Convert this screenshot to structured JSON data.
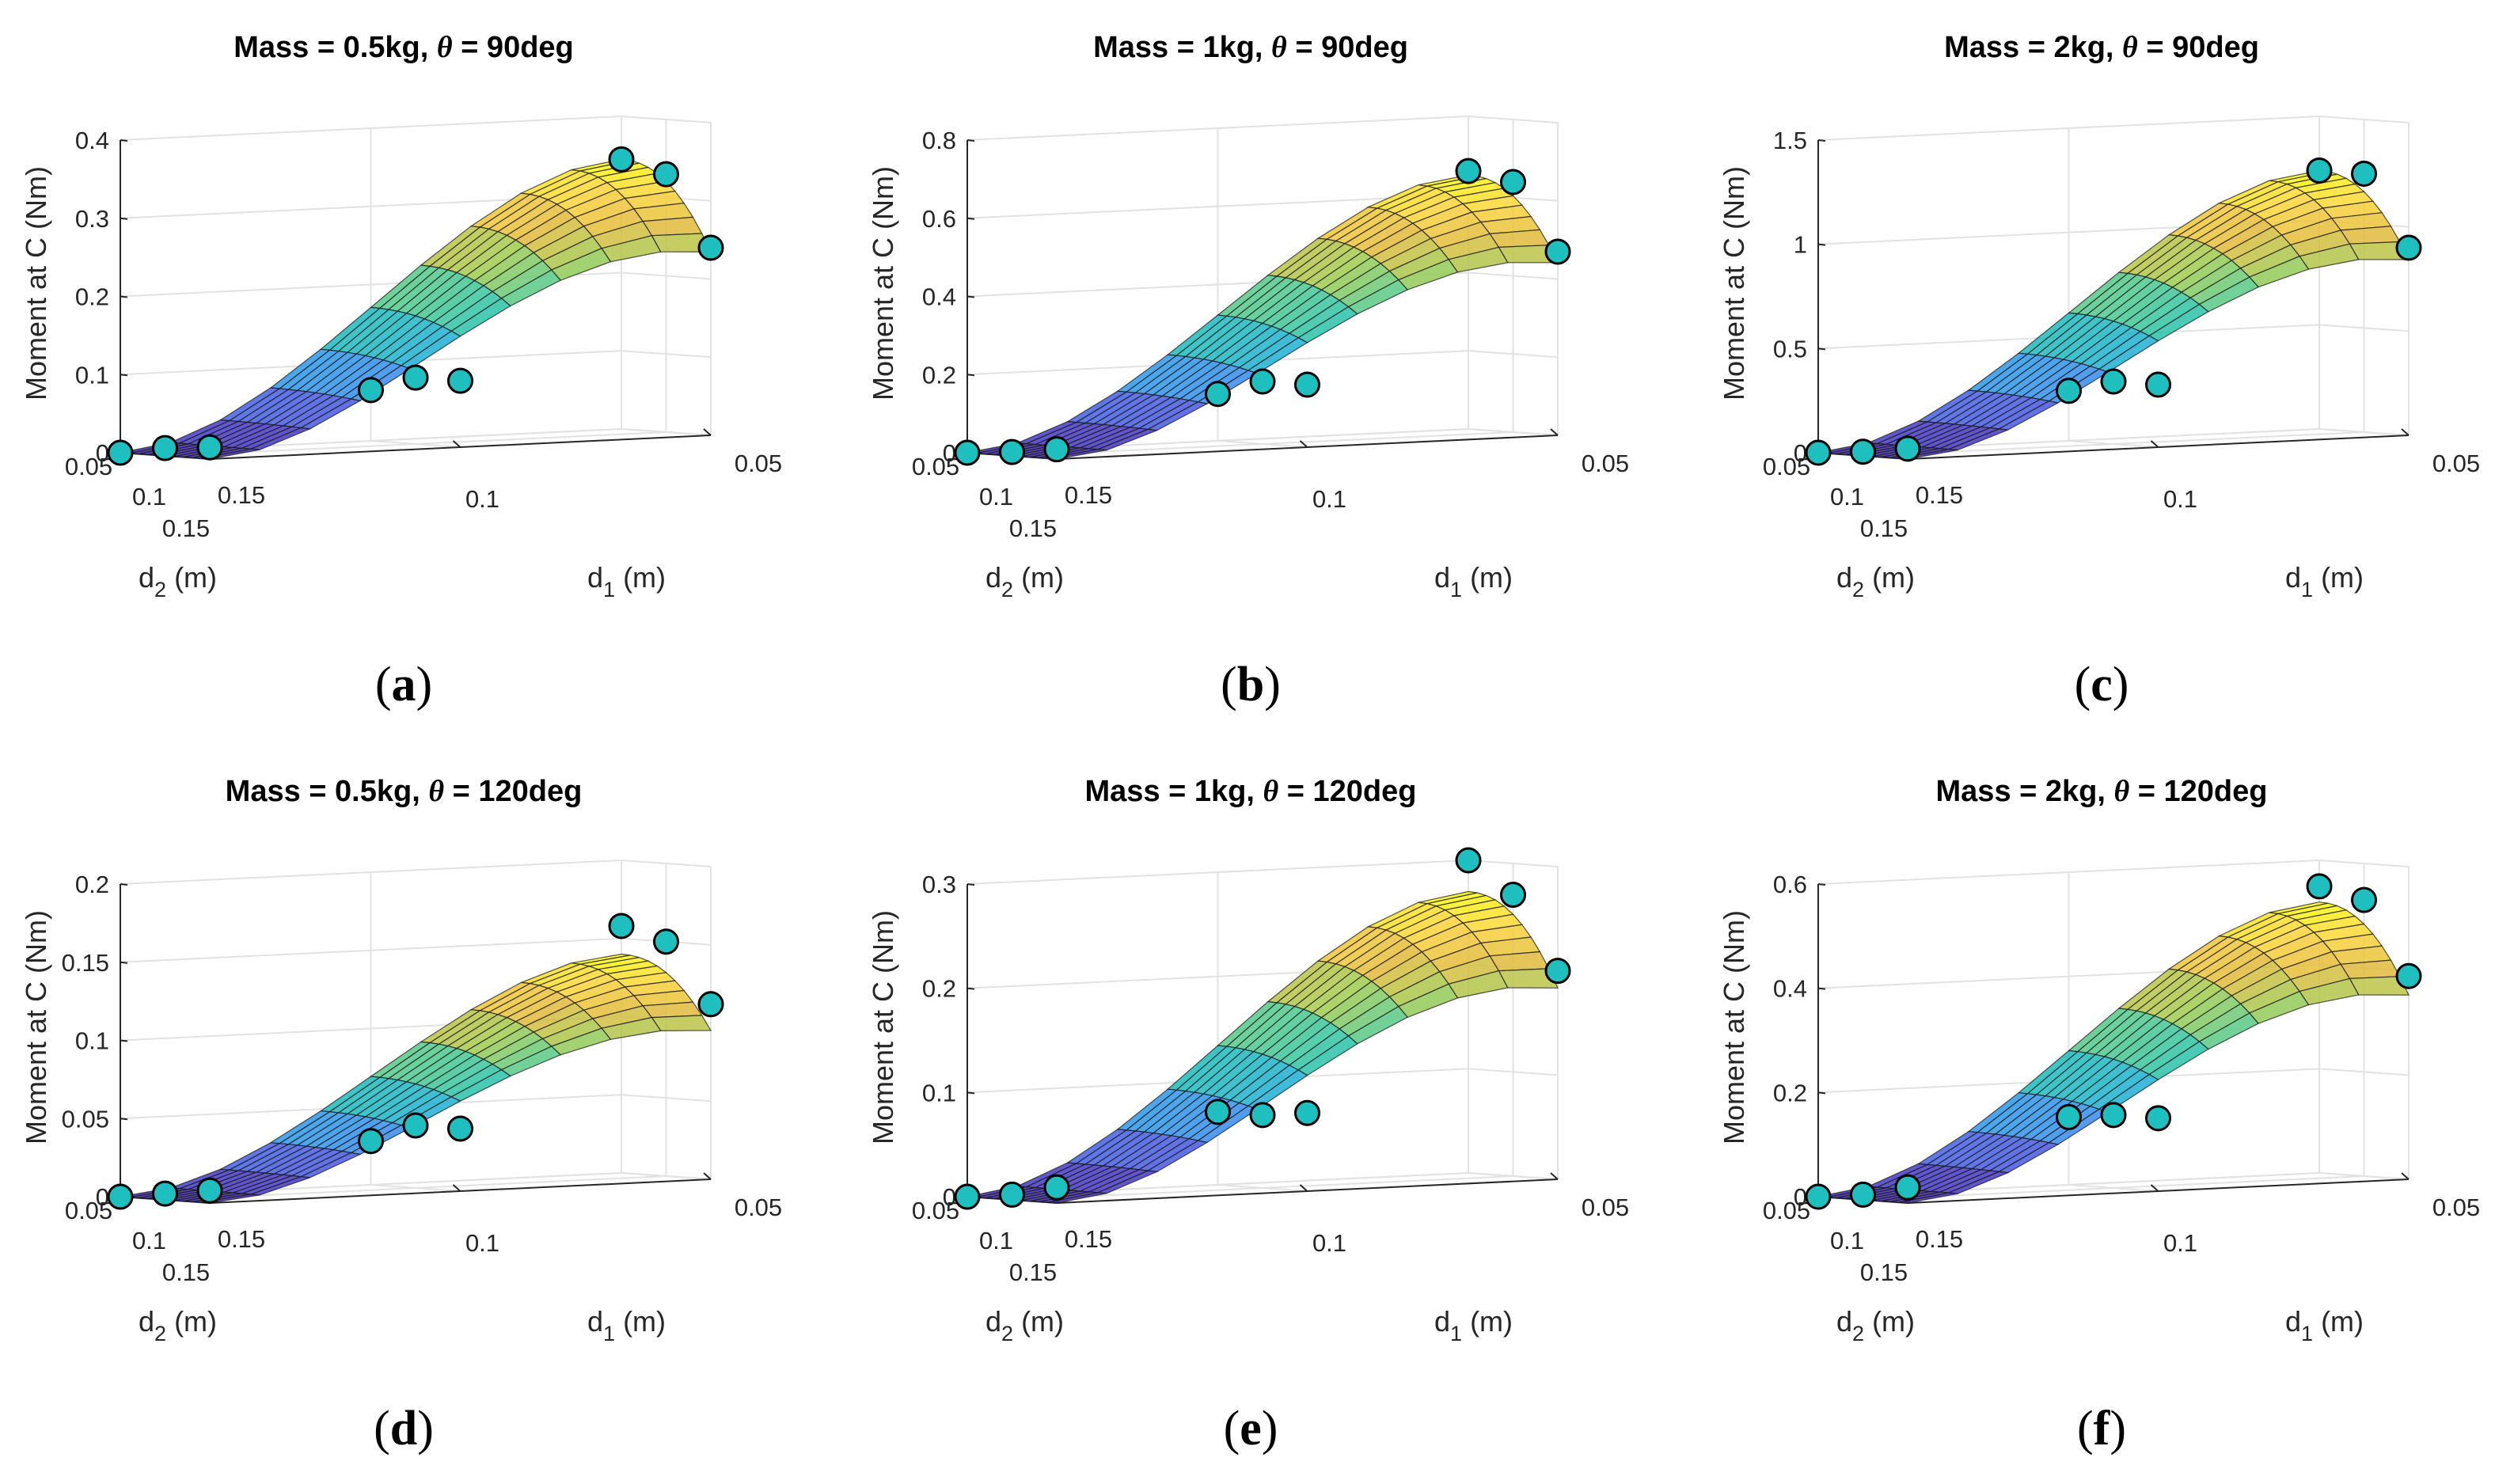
{
  "chart_data": [
    {
      "type": "surface",
      "panel": "(a)",
      "panel_letter": "a",
      "title_prefix": "Mass = 0.5kg,  ",
      "title_theta": "θ",
      "title_suffix": " = 90deg",
      "zlabel": "Moment at C (Nm)",
      "xlabel_base": "d",
      "xlabel_sub": "2",
      "xlabel_unit": " (m)",
      "ylabel_base": "d",
      "ylabel_sub": "1",
      "ylabel_unit": " (m)",
      "zlim": [
        0,
        0.4
      ],
      "zticks": [
        0,
        0.1,
        0.2,
        0.3,
        0.4
      ],
      "zticklabels": [
        "0",
        "0.1",
        "0.2",
        "0.3",
        "0.4"
      ],
      "d2_ticks": [
        "0.05",
        "0.1",
        "0.15"
      ],
      "d1_ticks": [
        "0.05",
        "0.1",
        "0.15"
      ],
      "surface_max": 0.345,
      "points": [
        {
          "d2": 0.05,
          "d1": 0.05,
          "moment": 0.345
        },
        {
          "d2": 0.1,
          "d1": 0.05,
          "moment": 0.33
        },
        {
          "d2": 0.15,
          "d1": 0.05,
          "moment": 0.24
        },
        {
          "d2": 0.05,
          "d1": 0.1,
          "moment": 0.065
        },
        {
          "d2": 0.1,
          "d1": 0.1,
          "moment": 0.085
        },
        {
          "d2": 0.15,
          "d1": 0.1,
          "moment": 0.085
        },
        {
          "d2": 0.05,
          "d1": 0.15,
          "moment": 0.0
        },
        {
          "d2": 0.1,
          "d1": 0.15,
          "moment": 0.01
        },
        {
          "d2": 0.15,
          "d1": 0.15,
          "moment": 0.015
        }
      ]
    },
    {
      "type": "surface",
      "panel": "(b)",
      "panel_letter": "b",
      "title_prefix": "Mass = 1kg,  ",
      "title_theta": "θ",
      "title_suffix": " = 90deg",
      "zlabel": "Moment at C (Nm)",
      "xlabel_base": "d",
      "xlabel_sub": "2",
      "xlabel_unit": " (m)",
      "ylabel_base": "d",
      "ylabel_sub": "1",
      "ylabel_unit": " (m)",
      "zlim": [
        0,
        0.8
      ],
      "zticks": [
        0,
        0.2,
        0.4,
        0.6,
        0.8
      ],
      "zticklabels": [
        "0",
        "0.2",
        "0.4",
        "0.6",
        "0.8"
      ],
      "d2_ticks": [
        "0.05",
        "0.1",
        "0.15"
      ],
      "d1_ticks": [
        "0.05",
        "0.1",
        "0.15"
      ],
      "surface_max": 0.65,
      "points": [
        {
          "d2": 0.05,
          "d1": 0.05,
          "moment": 0.66
        },
        {
          "d2": 0.1,
          "d1": 0.05,
          "moment": 0.64
        },
        {
          "d2": 0.15,
          "d1": 0.05,
          "moment": 0.47
        },
        {
          "d2": 0.05,
          "d1": 0.1,
          "moment": 0.12
        },
        {
          "d2": 0.1,
          "d1": 0.1,
          "moment": 0.16
        },
        {
          "d2": 0.15,
          "d1": 0.1,
          "moment": 0.16
        },
        {
          "d2": 0.05,
          "d1": 0.15,
          "moment": 0.0
        },
        {
          "d2": 0.1,
          "d1": 0.15,
          "moment": 0.01
        },
        {
          "d2": 0.15,
          "d1": 0.15,
          "moment": 0.025
        }
      ]
    },
    {
      "type": "surface",
      "panel": "(c)",
      "panel_letter": "c",
      "title_prefix": "Mass = 2kg,  ",
      "title_theta": "θ",
      "title_suffix": " = 90deg",
      "zlabel": "Moment at C (Nm)",
      "xlabel_base": "d",
      "xlabel_sub": "2",
      "xlabel_unit": " (m)",
      "ylabel_base": "d",
      "ylabel_sub": "1",
      "ylabel_unit": " (m)",
      "zlim": [
        0,
        1.5
      ],
      "zticks": [
        0,
        0.5,
        1,
        1.5
      ],
      "zticklabels": [
        "0",
        "0.5",
        "1",
        "1.5"
      ],
      "d2_ticks": [
        "0.05",
        "0.1",
        "0.15"
      ],
      "d1_ticks": [
        "0.05",
        "0.1",
        "0.15"
      ],
      "surface_max": 1.24,
      "points": [
        {
          "d2": 0.05,
          "d1": 0.05,
          "moment": 1.24
        },
        {
          "d2": 0.1,
          "d1": 0.05,
          "moment": 1.24
        },
        {
          "d2": 0.15,
          "d1": 0.05,
          "moment": 0.9
        },
        {
          "d2": 0.05,
          "d1": 0.1,
          "moment": 0.24
        },
        {
          "d2": 0.1,
          "d1": 0.1,
          "moment": 0.3
        },
        {
          "d2": 0.15,
          "d1": 0.1,
          "moment": 0.3
        },
        {
          "d2": 0.05,
          "d1": 0.15,
          "moment": 0.0
        },
        {
          "d2": 0.1,
          "d1": 0.15,
          "moment": 0.02
        },
        {
          "d2": 0.15,
          "d1": 0.15,
          "moment": 0.05
        }
      ]
    },
    {
      "type": "surface",
      "panel": "(d)",
      "panel_letter": "d",
      "title_prefix": "Mass = 0.5kg,  ",
      "title_theta": "θ",
      "title_suffix": " = 120deg",
      "zlabel": "Moment at C (Nm)",
      "xlabel_base": "d",
      "xlabel_sub": "2",
      "xlabel_unit": " (m)",
      "ylabel_base": "d",
      "ylabel_sub": "1",
      "ylabel_unit": " (m)",
      "zlim": [
        0,
        0.2
      ],
      "zticks": [
        0,
        0.05,
        0.1,
        0.15,
        0.2
      ],
      "zticklabels": [
        "0",
        "0.05",
        "0.1",
        "0.15",
        "0.2"
      ],
      "d2_ticks": [
        "0.05",
        "0.1",
        "0.15"
      ],
      "d1_ticks": [
        "0.05",
        "0.1",
        "0.15"
      ],
      "surface_max": 0.14,
      "points": [
        {
          "d2": 0.05,
          "d1": 0.05,
          "moment": 0.158
        },
        {
          "d2": 0.1,
          "d1": 0.05,
          "moment": 0.15
        },
        {
          "d2": 0.15,
          "d1": 0.05,
          "moment": 0.112
        },
        {
          "d2": 0.05,
          "d1": 0.1,
          "moment": 0.028
        },
        {
          "d2": 0.1,
          "d1": 0.1,
          "moment": 0.04
        },
        {
          "d2": 0.15,
          "d1": 0.1,
          "moment": 0.04
        },
        {
          "d2": 0.05,
          "d1": 0.15,
          "moment": 0.0
        },
        {
          "d2": 0.1,
          "d1": 0.15,
          "moment": 0.004
        },
        {
          "d2": 0.15,
          "d1": 0.15,
          "moment": 0.008
        }
      ]
    },
    {
      "type": "surface",
      "panel": "(e)",
      "panel_letter": "e",
      "title_prefix": "Mass = 1kg,  ",
      "title_theta": "θ",
      "title_suffix": " = 120deg",
      "zlabel": "Moment at C (Nm)",
      "xlabel_base": "d",
      "xlabel_sub": "2",
      "xlabel_unit": " (m)",
      "ylabel_base": "d",
      "ylabel_sub": "1",
      "ylabel_unit": " (m)",
      "zlim": [
        0,
        0.3
      ],
      "zticks": [
        0,
        0.1,
        0.2,
        0.3
      ],
      "zticklabels": [
        "0",
        "0.1",
        "0.2",
        "0.3"
      ],
      "d2_ticks": [
        "0.05",
        "0.1",
        "0.15"
      ],
      "d1_ticks": [
        "0.05",
        "0.1",
        "0.15"
      ],
      "surface_max": 0.27,
      "points": [
        {
          "d2": 0.05,
          "d1": 0.05,
          "moment": 0.3
        },
        {
          "d2": 0.1,
          "d1": 0.05,
          "moment": 0.27
        },
        {
          "d2": 0.15,
          "d1": 0.05,
          "moment": 0.2
        },
        {
          "d2": 0.05,
          "d1": 0.1,
          "moment": 0.07
        },
        {
          "d2": 0.1,
          "d1": 0.1,
          "moment": 0.07
        },
        {
          "d2": 0.15,
          "d1": 0.1,
          "moment": 0.075
        },
        {
          "d2": 0.05,
          "d1": 0.15,
          "moment": 0.0
        },
        {
          "d2": 0.1,
          "d1": 0.15,
          "moment": 0.005
        },
        {
          "d2": 0.15,
          "d1": 0.15,
          "moment": 0.015
        }
      ]
    },
    {
      "type": "surface",
      "panel": "(f)",
      "panel_letter": "f",
      "title_prefix": "Mass = 2kg,  ",
      "title_theta": "θ",
      "title_suffix": " = 120deg",
      "zlabel": "Moment at C (Nm)",
      "xlabel_base": "d",
      "xlabel_sub": "2",
      "xlabel_unit": " (m)",
      "ylabel_base": "d",
      "ylabel_sub": "1",
      "ylabel_unit": " (m)",
      "zlim": [
        0,
        0.6
      ],
      "zticks": [
        0,
        0.2,
        0.4,
        0.6
      ],
      "zticklabels": [
        "0",
        "0.2",
        "0.4",
        "0.6"
      ],
      "d2_ticks": [
        "0.05",
        "0.1",
        "0.15"
      ],
      "d1_ticks": [
        "0.05",
        "0.1",
        "0.15"
      ],
      "surface_max": 0.52,
      "points": [
        {
          "d2": 0.05,
          "d1": 0.05,
          "moment": 0.55
        },
        {
          "d2": 0.1,
          "d1": 0.05,
          "moment": 0.53
        },
        {
          "d2": 0.15,
          "d1": 0.05,
          "moment": 0.39
        },
        {
          "d2": 0.05,
          "d1": 0.1,
          "moment": 0.13
        },
        {
          "d2": 0.1,
          "d1": 0.1,
          "moment": 0.14
        },
        {
          "d2": 0.15,
          "d1": 0.1,
          "moment": 0.14
        },
        {
          "d2": 0.05,
          "d1": 0.15,
          "moment": 0.0
        },
        {
          "d2": 0.1,
          "d1": 0.15,
          "moment": 0.01
        },
        {
          "d2": 0.15,
          "d1": 0.15,
          "moment": 0.03
        }
      ]
    }
  ],
  "colors": {
    "marker_fill": "#1fbfbf",
    "marker_edge": "#000000",
    "grid": "#e2e2e2",
    "axis": "#262626",
    "colormap": [
      "#3e26a8",
      "#4a46d9",
      "#3d82f0",
      "#1fa9e0",
      "#1cbfb3",
      "#4cc98f",
      "#9ecb4f",
      "#e2ba3b",
      "#fbd43a",
      "#f9fb0e"
    ]
  }
}
